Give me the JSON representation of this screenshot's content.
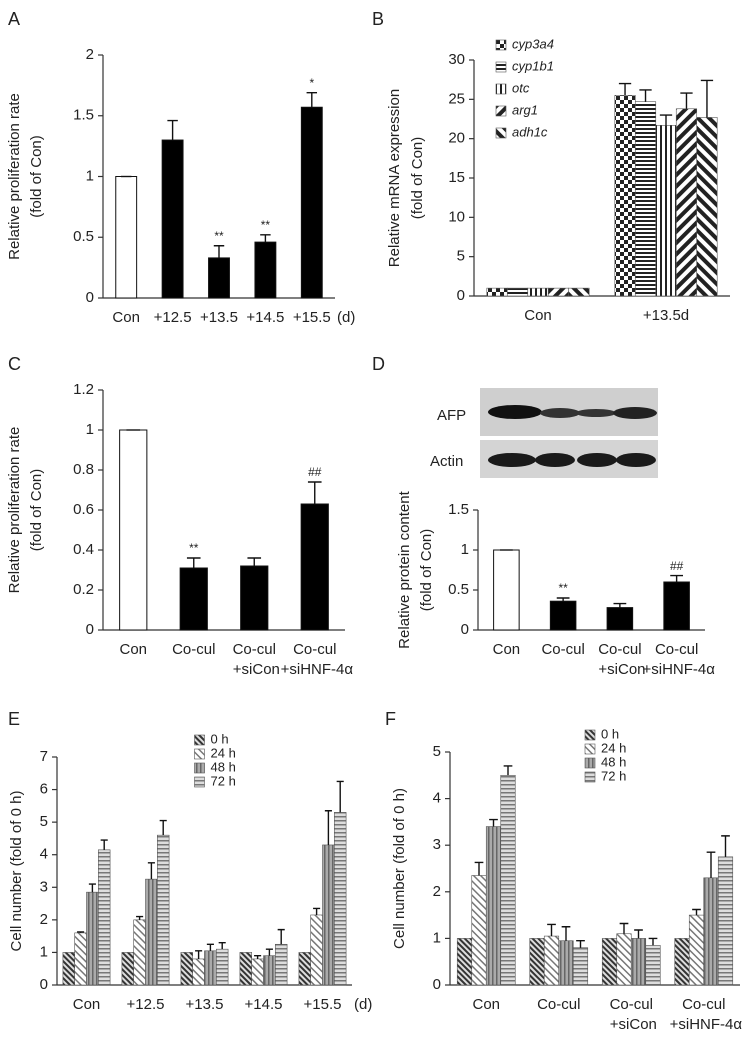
{
  "chart_data": [
    {
      "type": "bar",
      "panel": "A",
      "ylabel": [
        "Relative proliferation rate",
        "(fold of Con)"
      ],
      "categories": [
        "Con",
        "+12.5",
        "+13.5",
        "+14.5",
        "+15.5"
      ],
      "x_unit": "(d)",
      "values": [
        1,
        1.3,
        0.33,
        0.46,
        1.57
      ],
      "errors": [
        0,
        0.16,
        0.1,
        0.06,
        0.12
      ],
      "colors": [
        "#ffffff",
        "#000000",
        "#000000",
        "#000000",
        "#000000"
      ],
      "annotations": [
        null,
        null,
        "**",
        "**",
        "*"
      ],
      "ylim": [
        0,
        2
      ],
      "yticks": [
        0,
        0.5,
        1,
        1.5,
        2
      ]
    },
    {
      "type": "grouped-bar",
      "panel": "B",
      "ylabel": [
        "Relative mRNA expression",
        "(fold of Con)"
      ],
      "categories": [
        "Con",
        "+13.5d"
      ],
      "legend": "upper left",
      "legend_font_style": "italic",
      "series": [
        {
          "name": "cyp3a4",
          "pattern": "checker",
          "values": [
            1,
            25.5
          ],
          "errors": [
            0,
            1.5
          ]
        },
        {
          "name": "cyp1b1",
          "pattern": "hlines",
          "values": [
            1,
            24.7
          ],
          "errors": [
            0,
            1.5
          ]
        },
        {
          "name": "otc",
          "pattern": "vlines",
          "values": [
            1,
            21.7
          ],
          "errors": [
            0,
            1.3
          ]
        },
        {
          "name": "arg1",
          "pattern": "bdiag",
          "values": [
            1,
            23.8
          ],
          "errors": [
            0,
            2
          ]
        },
        {
          "name": "adh1c",
          "pattern": "fdiag",
          "values": [
            1,
            22.7
          ],
          "errors": [
            0,
            4.7
          ]
        }
      ],
      "ylim": [
        0,
        30
      ],
      "yticks": [
        0,
        5,
        10,
        15,
        20,
        25,
        30
      ]
    },
    {
      "type": "bar",
      "panel": "C",
      "ylabel": [
        "Relative proliferation rate",
        "(fold of Con)"
      ],
      "categories": [
        "Con",
        "Co-cul",
        "Co-cul +siCon",
        "Co-cul +siHNF-4α"
      ],
      "values": [
        1,
        0.31,
        0.32,
        0.63
      ],
      "errors": [
        0,
        0.05,
        0.04,
        0.11
      ],
      "colors": [
        "#ffffff",
        "#000000",
        "#000000",
        "#000000"
      ],
      "annotations": [
        null,
        "**",
        null,
        "##"
      ],
      "ylim": [
        0,
        1.2
      ],
      "yticks": [
        0,
        0.2,
        0.4,
        0.6,
        0.8,
        1,
        1.2
      ]
    },
    {
      "type": "bar",
      "panel": "D",
      "blot_labels": [
        "AFP",
        "Actin"
      ],
      "ylabel": [
        "Relative protein content",
        "(fold of Con)"
      ],
      "categories": [
        "Con",
        "Co-cul",
        "Co-cul +siCon",
        "Co-cul +siHNF-4α"
      ],
      "values": [
        1,
        0.36,
        0.28,
        0.6
      ],
      "errors": [
        0,
        0.04,
        0.05,
        0.08
      ],
      "colors": [
        "#ffffff",
        "#000000",
        "#000000",
        "#000000"
      ],
      "annotations": [
        null,
        "**",
        null,
        "##"
      ],
      "ylim": [
        0,
        1.5
      ],
      "yticks": [
        0,
        0.5,
        1,
        1.5
      ]
    },
    {
      "type": "grouped-bar",
      "panel": "E",
      "ylabel": [
        "Cell number (fold of 0 h)"
      ],
      "categories": [
        "Con",
        "+12.5",
        "+13.5",
        "+14.5",
        "+15.5"
      ],
      "x_unit": "(d)",
      "legend": "upper center",
      "series": [
        {
          "name": "0 h",
          "pattern": "d0",
          "values": [
            1,
            1,
            1,
            1,
            1
          ],
          "errors": [
            0,
            0,
            0,
            0,
            0
          ]
        },
        {
          "name": "24 h",
          "pattern": "d24",
          "values": [
            1.6,
            2.0,
            0.8,
            0.8,
            2.15
          ],
          "errors": [
            0.03,
            0.1,
            0.25,
            0.1,
            0.2
          ]
        },
        {
          "name": "48 h",
          "pattern": "d48",
          "values": [
            2.85,
            3.25,
            1.05,
            0.9,
            4.3
          ],
          "errors": [
            0.25,
            0.5,
            0.2,
            0.2,
            1.05
          ]
        },
        {
          "name": "72 h",
          "pattern": "d72",
          "values": [
            4.15,
            4.6,
            1.1,
            1.25,
            5.3
          ],
          "errors": [
            0.3,
            0.45,
            0.2,
            0.45,
            0.95
          ]
        }
      ],
      "ylim": [
        0,
        7
      ],
      "yticks": [
        0,
        1,
        2,
        3,
        4,
        5,
        6,
        7
      ]
    },
    {
      "type": "grouped-bar",
      "panel": "F",
      "ylabel": [
        "Cell number (fold of 0 h)"
      ],
      "categories": [
        "Con",
        "Co-cul",
        "Co-cul +siCon",
        "Co-cul +siHNF-4α"
      ],
      "legend": "upper center",
      "series": [
        {
          "name": "0 h",
          "pattern": "d0",
          "values": [
            1,
            1,
            1,
            1
          ],
          "errors": [
            0,
            0,
            0,
            0
          ]
        },
        {
          "name": "24 h",
          "pattern": "d24",
          "values": [
            2.35,
            1.05,
            1.1,
            1.5
          ],
          "errors": [
            0.28,
            0.25,
            0.22,
            0.12
          ]
        },
        {
          "name": "48 h",
          "pattern": "d48",
          "values": [
            3.4,
            0.95,
            1.0,
            2.3
          ],
          "errors": [
            0.15,
            0.3,
            0.18,
            0.55
          ]
        },
        {
          "name": "72 h",
          "pattern": "d72",
          "values": [
            4.5,
            0.8,
            0.85,
            2.75
          ],
          "errors": [
            0.2,
            0.15,
            0.15,
            0.45
          ]
        }
      ],
      "ylim": [
        0,
        5
      ],
      "yticks": [
        0,
        1,
        2,
        3,
        4,
        5
      ]
    }
  ]
}
